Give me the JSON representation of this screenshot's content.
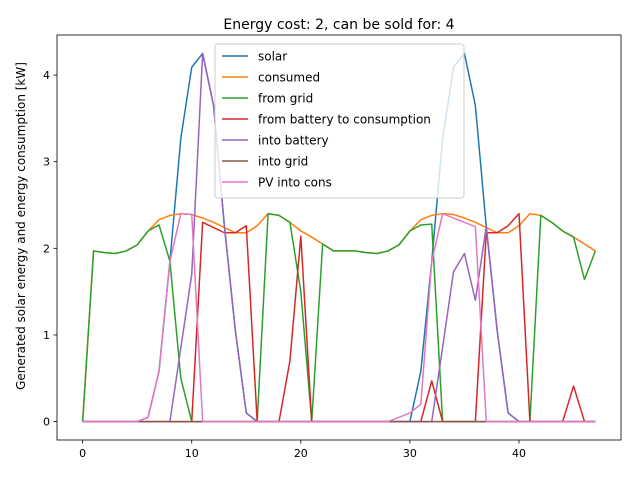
{
  "chart_data": {
    "type": "line",
    "title": "Energy cost: 2, can be sold for: 4",
    "xlabel": "",
    "ylabel": "Generated solar energy and energy consumption [kW]",
    "xlim": [
      -2.35,
      49.35
    ],
    "ylim": [
      -0.2125,
      4.4625
    ],
    "xticks": [
      0,
      10,
      20,
      30,
      40
    ],
    "yticks": [
      0,
      1,
      2,
      3,
      4
    ],
    "grid": false,
    "legend_placement": "upper-center",
    "x": [
      0,
      1,
      2,
      3,
      4,
      5,
      6,
      7,
      8,
      9,
      10,
      11,
      12,
      13,
      14,
      15,
      16,
      17,
      18,
      19,
      20,
      21,
      22,
      23,
      24,
      25,
      26,
      27,
      28,
      29,
      30,
      31,
      32,
      33,
      34,
      35,
      36,
      37,
      38,
      39,
      40,
      41,
      42,
      43,
      44,
      45,
      46,
      47
    ],
    "series": [
      {
        "name": "solar",
        "color": "#1f77b4",
        "values": [
          0,
          0,
          0,
          0,
          0,
          0,
          0.05,
          0.58,
          1.85,
          3.27,
          4.09,
          4.25,
          3.65,
          2.25,
          1.05,
          0.1,
          0,
          0,
          0,
          0,
          0,
          0,
          0,
          0,
          0,
          0,
          0,
          0,
          0,
          0,
          0,
          0.58,
          1.85,
          3.27,
          4.09,
          4.25,
          3.65,
          2.25,
          1.05,
          0.1,
          0,
          0,
          0,
          0,
          0,
          0,
          0,
          0
        ]
      },
      {
        "name": "consumed",
        "color": "#ff7f0e",
        "values": [
          0,
          1.97,
          1.95,
          1.94,
          1.97,
          2.04,
          2.2,
          2.33,
          2.38,
          2.4,
          2.39,
          2.35,
          2.3,
          2.24,
          2.18,
          2.18,
          2.26,
          2.4,
          2.38,
          2.3,
          2.2,
          2.13,
          2.05,
          1.97,
          1.97,
          1.97,
          1.95,
          1.94,
          1.97,
          2.04,
          2.2,
          2.33,
          2.38,
          2.4,
          2.39,
          2.35,
          2.3,
          2.24,
          2.18,
          2.18,
          2.26,
          2.4,
          2.38,
          2.3,
          2.2,
          2.13,
          2.05,
          1.97
        ]
      },
      {
        "name": "from grid",
        "color": "#2ca02c",
        "values": [
          0,
          1.97,
          1.95,
          1.94,
          1.97,
          2.04,
          2.2,
          2.27,
          1.85,
          0.5,
          0,
          0,
          0,
          0,
          0,
          0,
          0,
          2.4,
          2.38,
          2.3,
          1.5,
          0,
          2.05,
          1.97,
          1.97,
          1.97,
          1.95,
          1.94,
          1.97,
          2.04,
          2.2,
          2.27,
          2.28,
          0,
          0,
          0,
          0,
          0,
          0,
          0,
          0,
          0,
          2.38,
          2.3,
          2.2,
          2.13,
          1.64,
          1.97
        ]
      },
      {
        "name": "from battery to consumption",
        "color": "#d62728",
        "values": [
          0,
          0,
          0,
          0,
          0,
          0,
          0,
          0,
          0,
          0,
          0,
          2.3,
          2.24,
          2.18,
          2.18,
          2.26,
          0,
          0,
          0,
          0.7,
          2.14,
          0,
          0,
          0,
          0,
          0,
          0,
          0,
          0,
          0,
          0,
          0,
          0.47,
          0,
          0,
          0,
          0,
          2.18,
          2.18,
          2.26,
          2.4,
          0,
          0,
          0,
          0,
          0.41,
          0,
          0
        ]
      },
      {
        "name": "into battery",
        "color": "#9467bd",
        "values": [
          0,
          0,
          0,
          0,
          0,
          0,
          0,
          0,
          0,
          0.85,
          1.7,
          4.25,
          3.65,
          2.25,
          1.05,
          0.1,
          0,
          0,
          0,
          0,
          0,
          0,
          0,
          0,
          0,
          0,
          0,
          0,
          0,
          0,
          0,
          0,
          0,
          0.86,
          1.73,
          1.94,
          1.4,
          2.25,
          1.05,
          0.1,
          0,
          0,
          0,
          0,
          0,
          0,
          0,
          0
        ]
      },
      {
        "name": "into grid",
        "color": "#8c564b",
        "values": [
          0,
          0,
          0,
          0,
          0,
          0,
          0,
          0,
          0,
          0,
          0,
          0,
          0,
          0,
          0,
          0,
          0,
          0,
          0,
          0,
          0,
          0,
          0,
          0,
          0,
          0,
          0,
          0,
          0,
          0,
          0,
          0,
          0,
          0,
          0,
          0,
          0,
          0,
          0,
          0,
          0,
          0,
          0,
          0,
          0,
          0,
          0,
          0
        ]
      },
      {
        "name": "PV into cons",
        "color": "#e377c2",
        "values": [
          0,
          0,
          0,
          0,
          0,
          0,
          0.05,
          0.58,
          1.85,
          2.4,
          2.39,
          0,
          0,
          0,
          0,
          0,
          0,
          0,
          0,
          0,
          0,
          0,
          0,
          0,
          0,
          0,
          0,
          0,
          0,
          0.05,
          0.1,
          0.2,
          1.85,
          2.4,
          2.35,
          2.3,
          2.25,
          0,
          0,
          0,
          0,
          0,
          0,
          0,
          0,
          0,
          0,
          0
        ]
      }
    ]
  }
}
